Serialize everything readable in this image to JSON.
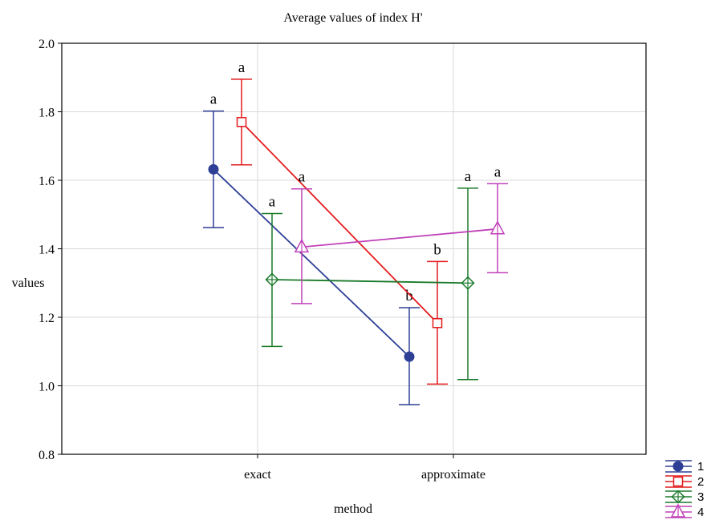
{
  "chart_data": {
    "type": "line",
    "title": "Average values of index H'",
    "xlabel": "method",
    "ylabel": "values",
    "categories": [
      "exact",
      "approximate"
    ],
    "ylim": [
      0.8,
      2.0
    ],
    "yticks": [
      "0.8",
      "1.0",
      "1.2",
      "1.4",
      "1.6",
      "1.8",
      "2.0"
    ],
    "grid": true,
    "legend_position": "bottom-right",
    "series": [
      {
        "name": "1",
        "color": "#2e3f96",
        "marker": "circle-filled",
        "values": [
          1.632,
          1.085
        ],
        "lower": [
          1.462,
          0.945
        ],
        "upper": [
          1.802,
          1.228
        ],
        "labels": [
          "a",
          "b"
        ]
      },
      {
        "name": "2",
        "color": "#e41a1c",
        "marker": "square-open",
        "values": [
          1.77,
          1.183
        ],
        "lower": [
          1.645,
          1.005
        ],
        "upper": [
          1.895,
          1.363
        ],
        "labels": [
          "a",
          "b"
        ]
      },
      {
        "name": "3",
        "color": "#1a7a2a",
        "marker": "diamond-cross",
        "values": [
          1.31,
          1.3
        ],
        "lower": [
          1.115,
          1.018
        ],
        "upper": [
          1.503,
          1.577
        ],
        "labels": [
          "a",
          "a"
        ]
      },
      {
        "name": "4",
        "color": "#c040b8",
        "marker": "triangle-open",
        "values": [
          1.405,
          1.458
        ],
        "lower": [
          1.24,
          1.33
        ],
        "upper": [
          1.575,
          1.59
        ],
        "labels": [
          "a",
          "a"
        ]
      }
    ]
  }
}
